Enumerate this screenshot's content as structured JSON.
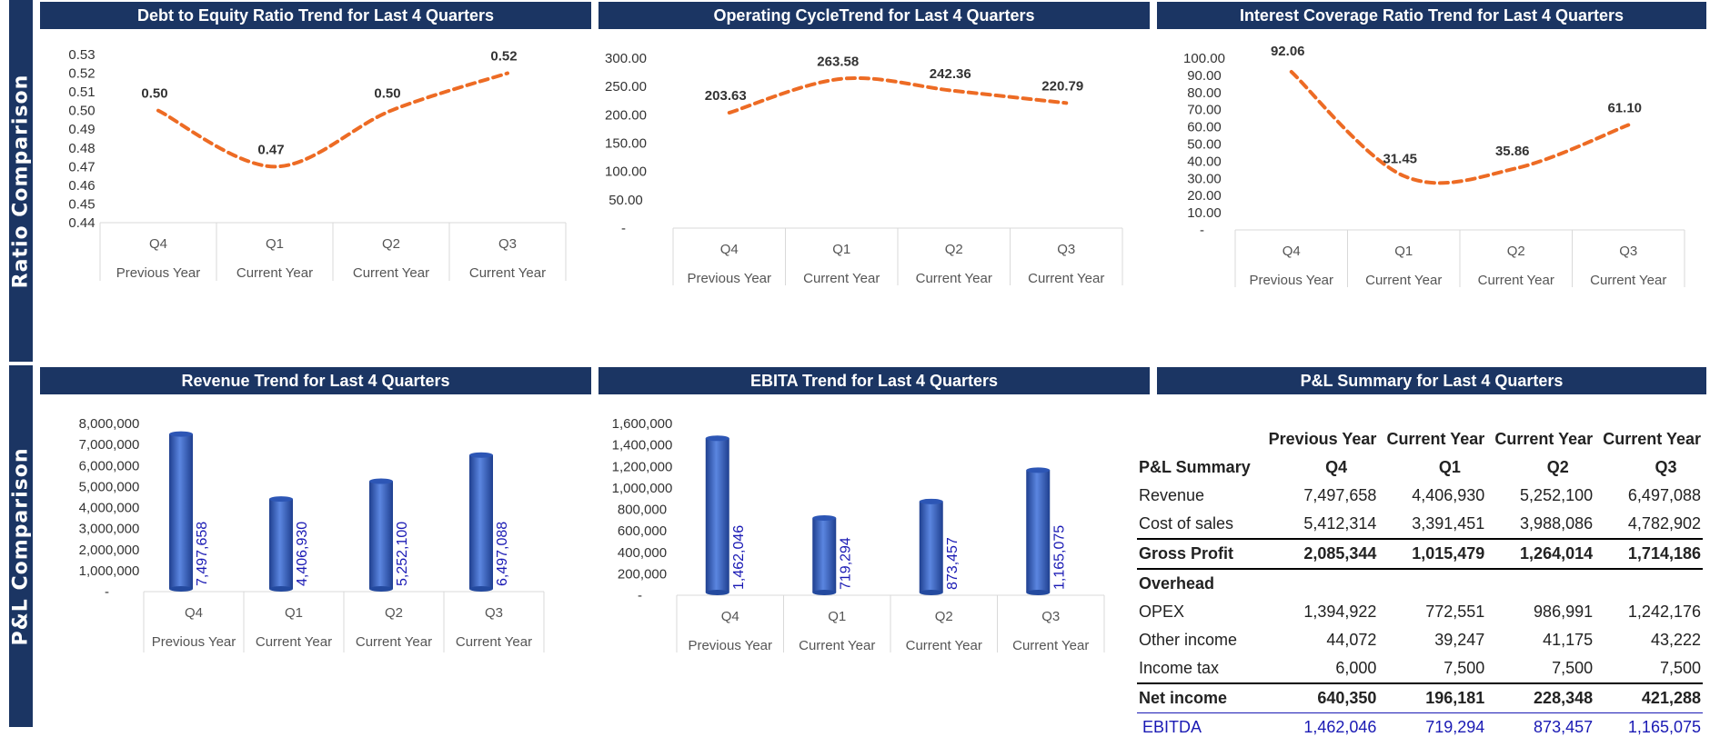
{
  "sections": {
    "ratio_label": "Ratio Comparison",
    "pl_label": "P&L Comparison"
  },
  "categories": [
    {
      "q": "Q4",
      "y": "Previous Year"
    },
    {
      "q": "Q1",
      "y": "Current Year"
    },
    {
      "q": "Q2",
      "y": "Current Year"
    },
    {
      "q": "Q3",
      "y": "Current Year"
    }
  ],
  "chart_data": [
    {
      "id": "de",
      "type": "line",
      "title": "Debt to Equity Ratio Trend for Last 4 Quarters",
      "categories": [
        "Q4 Previous Year",
        "Q1 Current Year",
        "Q2 Current Year",
        "Q3 Current Year"
      ],
      "values": [
        0.5,
        0.47,
        0.5,
        0.52
      ],
      "labels": [
        "0.50",
        "0.47",
        "0.50",
        "0.52"
      ],
      "ylim": [
        0.44,
        0.53
      ],
      "yticks": [
        "0.44",
        "0.45",
        "0.46",
        "0.47",
        "0.48",
        "0.49",
        "0.50",
        "0.51",
        "0.52",
        "0.53"
      ],
      "color": "#ed6b24"
    },
    {
      "id": "oc",
      "type": "line",
      "title": "Operating CycleTrend for Last 4 Quarters",
      "categories": [
        "Q4 Previous Year",
        "Q1 Current Year",
        "Q2 Current Year",
        "Q3 Current Year"
      ],
      "values": [
        203.63,
        263.58,
        242.36,
        220.79
      ],
      "labels": [
        "203.63",
        "263.58",
        "242.36",
        "220.79"
      ],
      "ylim": [
        0,
        300
      ],
      "yticks": [
        "-",
        "50.00",
        "100.00",
        "150.00",
        "200.00",
        "250.00",
        "300.00"
      ],
      "color": "#ed6b24"
    },
    {
      "id": "ic",
      "type": "line",
      "title": "Interest Coverage  Ratio Trend for Last 4 Quarters",
      "categories": [
        "Q4 Previous Year",
        "Q1 Current Year",
        "Q2 Current Year",
        "Q3 Current Year"
      ],
      "values": [
        92.06,
        31.45,
        35.86,
        61.1
      ],
      "labels": [
        "92.06",
        "31.45",
        "35.86",
        "61.10"
      ],
      "ylim": [
        0,
        100
      ],
      "yticks": [
        "-",
        "10.00",
        "20.00",
        "30.00",
        "40.00",
        "50.00",
        "60.00",
        "70.00",
        "80.00",
        "90.00",
        "100.00"
      ],
      "color": "#ed6b24"
    },
    {
      "id": "rev",
      "type": "bar",
      "title": "Revenue  Trend for Last 4 Quarters",
      "categories": [
        "Q4 Previous Year",
        "Q1 Current Year",
        "Q2 Current Year",
        "Q3 Current Year"
      ],
      "values": [
        7497658,
        4406930,
        5252100,
        6497088
      ],
      "labels": [
        "7,497,658",
        "4,406,930",
        "5,252,100",
        "6,497,088"
      ],
      "ylim": [
        0,
        8000000
      ],
      "yticks": [
        "-",
        "1,000,000",
        "2,000,000",
        "3,000,000",
        "4,000,000",
        "5,000,000",
        "6,000,000",
        "7,000,000",
        "8,000,000"
      ],
      "color": "#3a63c4"
    },
    {
      "id": "ebita",
      "type": "bar",
      "title": "EBITA Trend for Last 4 Quarters",
      "categories": [
        "Q4 Previous Year",
        "Q1 Current Year",
        "Q2 Current Year",
        "Q3 Current Year"
      ],
      "values": [
        1462046,
        719294,
        873457,
        1165075
      ],
      "labels": [
        "1,462,046",
        "719,294",
        "873,457",
        "1,165,075"
      ],
      "ylim": [
        0,
        1600000
      ],
      "yticks": [
        "-",
        "200,000",
        "400,000",
        "600,000",
        "800,000",
        "1,000,000",
        "1,200,000",
        "1,400,000",
        "1,600,000"
      ],
      "color": "#3a63c4"
    }
  ],
  "pl": {
    "title": "P&L Summary  for Last 4 Quarters",
    "header_row1": [
      "",
      "Previous Year",
      "Current Year",
      "Current Year",
      "Current Year"
    ],
    "header_row2": [
      "P&L Summary",
      "Q4",
      "Q1",
      "Q2",
      "Q3"
    ],
    "rows": {
      "revenue": [
        "Revenue",
        "7,497,658",
        "4,406,930",
        "5,252,100",
        "6,497,088"
      ],
      "cos": [
        "Cost of sales",
        "5,412,314",
        "3,391,451",
        "3,988,086",
        "4,782,902"
      ],
      "gross": [
        "Gross Profit",
        "2,085,344",
        "1,015,479",
        "1,264,014",
        "1,714,186"
      ],
      "overhead": [
        "Overhead"
      ],
      "opex": [
        "OPEX",
        "1,394,922",
        "772,551",
        "986,991",
        "1,242,176"
      ],
      "other": [
        "Other income",
        "44,072",
        "39,247",
        "41,175",
        "43,222"
      ],
      "tax": [
        "Income tax",
        "6,000",
        "7,500",
        "7,500",
        "7,500"
      ],
      "net": [
        "Net income",
        "640,350",
        "196,181",
        "228,348",
        "421,288"
      ],
      "ebitda": [
        "EBITDA",
        "1,462,046",
        "719,294",
        "873,457",
        "1,165,075"
      ]
    }
  }
}
